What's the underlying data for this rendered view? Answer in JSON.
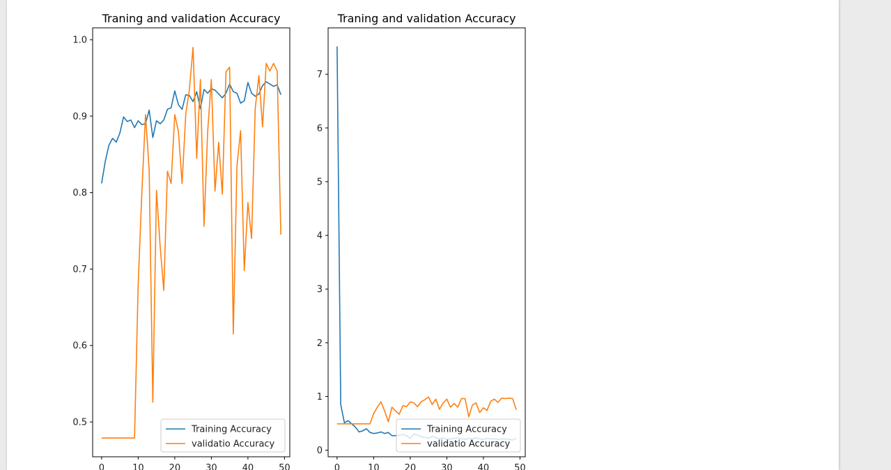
{
  "colors": {
    "training": "#1f77b4",
    "validation": "#ff7f0e"
  },
  "chart_data": [
    {
      "type": "line",
      "title": "Traning and validation Accuracy",
      "xlim": [
        -2.45,
        51.45
      ],
      "ylim": [
        0.4545,
        1.0155
      ],
      "xticks": [
        0,
        10,
        20,
        30,
        40,
        50
      ],
      "yticks": [
        0.5,
        0.6,
        0.7,
        0.8,
        0.9,
        1.0
      ],
      "xtick_labels": [
        "0",
        "10",
        "20",
        "30",
        "40",
        "50"
      ],
      "ytick_labels": [
        "0.5",
        "0.6",
        "0.7",
        "0.8",
        "0.9",
        "1.0"
      ],
      "legend": "lower right",
      "grid": false,
      "x": [
        0,
        1,
        2,
        3,
        4,
        5,
        6,
        7,
        8,
        9,
        10,
        11,
        12,
        13,
        14,
        15,
        16,
        17,
        18,
        19,
        20,
        21,
        22,
        23,
        24,
        25,
        26,
        27,
        28,
        29,
        30,
        31,
        32,
        33,
        34,
        35,
        36,
        37,
        38,
        39,
        40,
        41,
        42,
        43,
        44,
        45,
        46,
        47,
        48,
        49
      ],
      "series": [
        {
          "name": "Training Accuracy",
          "values": [
            0.812,
            0.841,
            0.862,
            0.871,
            0.866,
            0.878,
            0.899,
            0.893,
            0.895,
            0.885,
            0.894,
            0.889,
            0.89,
            0.908,
            0.872,
            0.894,
            0.89,
            0.895,
            0.909,
            0.911,
            0.933,
            0.915,
            0.909,
            0.928,
            0.927,
            0.919,
            0.932,
            0.91,
            0.935,
            0.93,
            0.936,
            0.934,
            0.929,
            0.924,
            0.93,
            0.942,
            0.932,
            0.93,
            0.917,
            0.92,
            0.944,
            0.93,
            0.926,
            0.929,
            0.94,
            0.945,
            0.942,
            0.939,
            0.941,
            0.928
          ]
        },
        {
          "name": "validatio Accuracy",
          "values": [
            0.479,
            0.479,
            0.479,
            0.479,
            0.479,
            0.479,
            0.479,
            0.479,
            0.479,
            0.479,
            0.68,
            0.8,
            0.902,
            0.83,
            0.526,
            0.803,
            0.73,
            0.672,
            0.828,
            0.812,
            0.902,
            0.88,
            0.812,
            0.902,
            0.935,
            0.99,
            0.845,
            0.948,
            0.756,
            0.88,
            0.948,
            0.802,
            0.866,
            0.798,
            0.958,
            0.964,
            0.615,
            0.835,
            0.881,
            0.698,
            0.787,
            0.74,
            0.91,
            0.953,
            0.886,
            0.969,
            0.959,
            0.969,
            0.959,
            0.745
          ]
        }
      ]
    },
    {
      "type": "line",
      "title": "Traning and validation Accuracy",
      "xlim": [
        -2.45,
        51.45
      ],
      "ylim": [
        -0.123,
        7.865
      ],
      "xticks": [
        0,
        10,
        20,
        30,
        40,
        50
      ],
      "yticks": [
        0,
        1,
        2,
        3,
        4,
        5,
        6,
        7
      ],
      "xtick_labels": [
        "0",
        "10",
        "20",
        "30",
        "40",
        "50"
      ],
      "ytick_labels": [
        "0",
        "1",
        "2",
        "3",
        "4",
        "5",
        "6",
        "7"
      ],
      "legend": "lower right",
      "grid": false,
      "x": [
        0,
        1,
        2,
        3,
        4,
        5,
        6,
        7,
        8,
        9,
        10,
        11,
        12,
        13,
        14,
        15,
        16,
        17,
        18,
        19,
        20,
        21,
        22,
        23,
        24,
        25,
        26,
        27,
        28,
        29,
        30,
        31,
        32,
        33,
        34,
        35,
        36,
        37,
        38,
        39,
        40,
        41,
        42,
        43,
        44,
        45,
        46,
        47,
        48,
        49
      ],
      "series": [
        {
          "name": "Training Accuracy",
          "values": [
            7.52,
            0.85,
            0.51,
            0.55,
            0.49,
            0.43,
            0.34,
            0.36,
            0.4,
            0.33,
            0.31,
            0.32,
            0.34,
            0.31,
            0.33,
            0.27,
            0.27,
            0.28,
            0.29,
            0.27,
            0.22,
            0.3,
            0.28,
            0.25,
            0.24,
            0.22,
            0.26,
            0.23,
            0.21,
            0.23,
            0.2,
            0.21,
            0.22,
            0.23,
            0.21,
            0.2,
            0.22,
            0.21,
            0.23,
            0.21,
            0.2,
            0.22,
            0.21,
            0.21,
            0.2,
            0.21,
            0.21,
            0.2,
            0.19,
            0.22
          ]
        },
        {
          "name": "validatio Accuracy",
          "values": [
            0.49,
            0.49,
            0.49,
            0.49,
            0.49,
            0.49,
            0.49,
            0.49,
            0.49,
            0.49,
            0.68,
            0.8,
            0.9,
            0.73,
            0.53,
            0.8,
            0.73,
            0.67,
            0.83,
            0.81,
            0.9,
            0.88,
            0.81,
            0.9,
            0.94,
            0.99,
            0.85,
            0.95,
            0.76,
            0.88,
            0.95,
            0.8,
            0.87,
            0.8,
            0.96,
            0.96,
            0.62,
            0.84,
            0.88,
            0.7,
            0.79,
            0.74,
            0.91,
            0.95,
            0.89,
            0.97,
            0.96,
            0.97,
            0.96,
            0.75
          ]
        }
      ]
    }
  ]
}
